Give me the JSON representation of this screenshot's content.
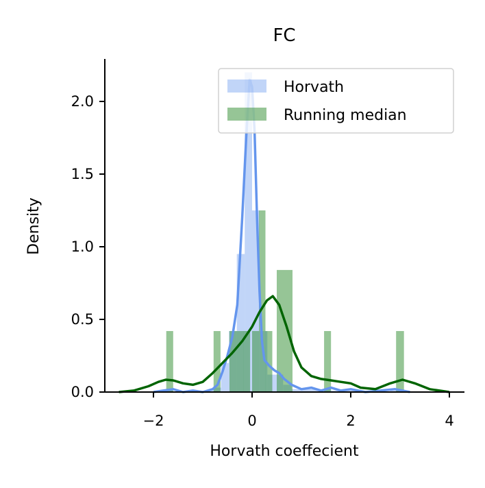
{
  "chart_data": {
    "type": "bar",
    "title": "FC",
    "xlabel": "Horvath coeffecient",
    "ylabel": "Density",
    "xlim": [
      -3.0,
      4.3
    ],
    "ylim": [
      0,
      2.3
    ],
    "xticks": [
      -2,
      0,
      2,
      4
    ],
    "xtick_labels": [
      "−2",
      "0",
      "2",
      "4"
    ],
    "yticks": [
      0.0,
      0.5,
      1.0,
      1.5,
      2.0
    ],
    "ytick_labels": [
      "0.0",
      "0.5",
      "1.0",
      "1.5",
      "2.0"
    ],
    "grid": false,
    "legend": {
      "position": "top-right",
      "entries": [
        "Horvath",
        "Running median"
      ]
    },
    "colors": {
      "horvath_bar": "#6495ed",
      "horvath_line": "#6495ed",
      "running_bar": "#2e8b2e",
      "running_line": "#006400"
    },
    "series": [
      {
        "name": "Horvath",
        "kind": "histogram",
        "bins": [
          {
            "x0": -2.0,
            "x1": -1.6,
            "y": 0.01
          },
          {
            "x0": -1.6,
            "x1": -1.2,
            "y": 0.0
          },
          {
            "x0": -1.2,
            "x1": -0.8,
            "y": 0.01
          },
          {
            "x0": -0.8,
            "x1": -0.63,
            "y": 0.03
          },
          {
            "x0": -0.63,
            "x1": -0.47,
            "y": 0.2
          },
          {
            "x0": -0.47,
            "x1": -0.31,
            "y": 0.42
          },
          {
            "x0": -0.31,
            "x1": -0.15,
            "y": 0.95
          },
          {
            "x0": -0.15,
            "x1": 0.0,
            "y": 2.2
          },
          {
            "x0": 0.0,
            "x1": 0.15,
            "y": 1.25
          },
          {
            "x0": 0.15,
            "x1": 0.31,
            "y": 0.42
          },
          {
            "x0": 0.31,
            "x1": 0.47,
            "y": 0.12
          },
          {
            "x0": 0.47,
            "x1": 0.63,
            "y": 0.12
          },
          {
            "x0": 0.63,
            "x1": 0.8,
            "y": 0.05
          },
          {
            "x0": 0.8,
            "x1": 1.2,
            "y": 0.02
          },
          {
            "x0": 1.2,
            "x1": 1.6,
            "y": 0.02
          },
          {
            "x0": 1.6,
            "x1": 2.0,
            "y": 0.01
          },
          {
            "x0": 2.0,
            "x1": 2.4,
            "y": 0.01
          },
          {
            "x0": 2.4,
            "x1": 2.8,
            "y": 0.0
          },
          {
            "x0": 2.8,
            "x1": 3.2,
            "y": 0.01
          }
        ],
        "kde": [
          [
            -2.0,
            0.0
          ],
          [
            -1.8,
            0.01
          ],
          [
            -1.6,
            0.02
          ],
          [
            -1.4,
            0.0
          ],
          [
            -1.2,
            0.01
          ],
          [
            -1.0,
            0.0
          ],
          [
            -0.8,
            0.02
          ],
          [
            -0.7,
            0.05
          ],
          [
            -0.6,
            0.14
          ],
          [
            -0.5,
            0.25
          ],
          [
            -0.4,
            0.38
          ],
          [
            -0.3,
            0.6
          ],
          [
            -0.2,
            1.2
          ],
          [
            -0.12,
            1.75
          ],
          [
            -0.05,
            2.15
          ],
          [
            0.0,
            2.1
          ],
          [
            0.05,
            1.8
          ],
          [
            0.1,
            1.2
          ],
          [
            0.15,
            0.7
          ],
          [
            0.2,
            0.35
          ],
          [
            0.25,
            0.22
          ],
          [
            0.35,
            0.18
          ],
          [
            0.45,
            0.15
          ],
          [
            0.55,
            0.13
          ],
          [
            0.65,
            0.09
          ],
          [
            0.8,
            0.05
          ],
          [
            1.0,
            0.02
          ],
          [
            1.2,
            0.03
          ],
          [
            1.4,
            0.01
          ],
          [
            1.6,
            0.03
          ],
          [
            1.8,
            0.01
          ],
          [
            2.0,
            0.02
          ],
          [
            2.3,
            0.0
          ],
          [
            2.6,
            0.01
          ],
          [
            2.9,
            0.02
          ],
          [
            3.2,
            0.0
          ]
        ]
      },
      {
        "name": "Running median",
        "kind": "histogram",
        "bins": [
          {
            "x0": -1.74,
            "x1": -1.6,
            "y": 0.42
          },
          {
            "x0": -0.78,
            "x1": -0.64,
            "y": 0.42
          },
          {
            "x0": -0.46,
            "x1": -0.32,
            "y": 0.42
          },
          {
            "x0": -0.32,
            "x1": -0.18,
            "y": 0.42
          },
          {
            "x0": -0.18,
            "x1": -0.04,
            "y": 0.42
          },
          {
            "x0": 0.0,
            "x1": 0.14,
            "y": 0.42
          },
          {
            "x0": 0.14,
            "x1": 0.27,
            "y": 1.25
          },
          {
            "x0": 0.27,
            "x1": 0.41,
            "y": 0.42
          },
          {
            "x0": 0.5,
            "x1": 0.82,
            "y": 0.84
          },
          {
            "x0": 1.46,
            "x1": 1.6,
            "y": 0.42
          },
          {
            "x0": 2.92,
            "x1": 3.08,
            "y": 0.42
          }
        ],
        "kde": [
          [
            -2.7,
            0.0
          ],
          [
            -2.4,
            0.01
          ],
          [
            -2.1,
            0.04
          ],
          [
            -1.9,
            0.07
          ],
          [
            -1.75,
            0.085
          ],
          [
            -1.6,
            0.08
          ],
          [
            -1.4,
            0.06
          ],
          [
            -1.2,
            0.05
          ],
          [
            -1.0,
            0.07
          ],
          [
            -0.8,
            0.13
          ],
          [
            -0.6,
            0.2
          ],
          [
            -0.4,
            0.27
          ],
          [
            -0.2,
            0.35
          ],
          [
            0.0,
            0.45
          ],
          [
            0.15,
            0.55
          ],
          [
            0.3,
            0.63
          ],
          [
            0.42,
            0.66
          ],
          [
            0.55,
            0.6
          ],
          [
            0.7,
            0.45
          ],
          [
            0.85,
            0.28
          ],
          [
            1.0,
            0.17
          ],
          [
            1.2,
            0.11
          ],
          [
            1.4,
            0.09
          ],
          [
            1.6,
            0.08
          ],
          [
            1.8,
            0.07
          ],
          [
            2.0,
            0.06
          ],
          [
            2.2,
            0.03
          ],
          [
            2.5,
            0.02
          ],
          [
            2.8,
            0.06
          ],
          [
            3.05,
            0.085
          ],
          [
            3.3,
            0.06
          ],
          [
            3.6,
            0.02
          ],
          [
            4.0,
            0.0
          ]
        ]
      }
    ]
  }
}
